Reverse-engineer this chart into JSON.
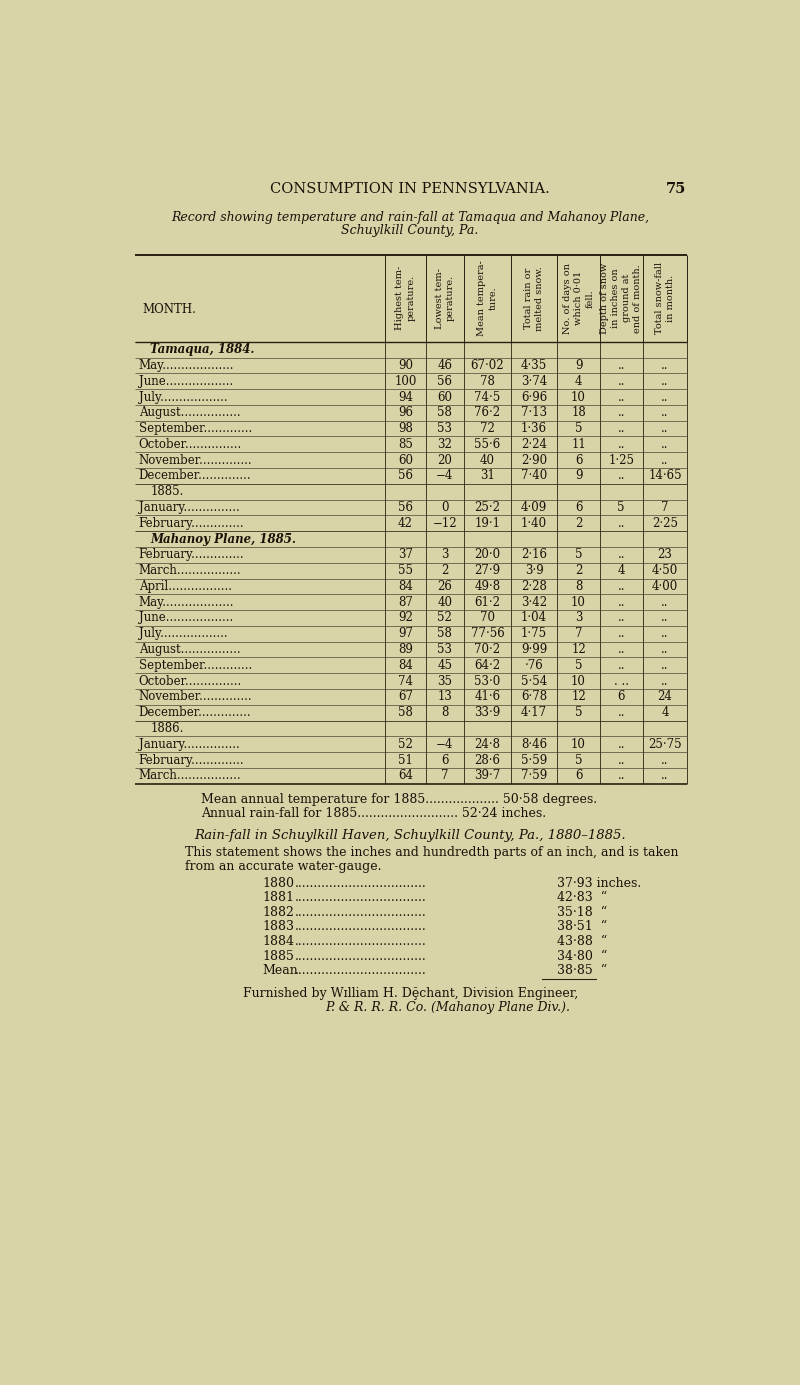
{
  "page_header": "CONSUMPTION IN PENNSYLVANIA.",
  "page_number": "75",
  "record_title_line1": "Record showing temperature and rain-fall at Tamaqua and Mahanoy Plane,",
  "record_title_line2": "Schuylkill County, Pa.",
  "bg_color": "#d8d4a8",
  "text_color": "#1a1208",
  "line_color": "#2a2010",
  "sections": [
    {
      "label": "Tamaqua, 1884.",
      "label_style": "italic_bold",
      "rows": [
        {
          "month": "May",
          "high": "90",
          "low": "46",
          "mean": "67·02",
          "rain": "4·35",
          "days": "9",
          "depth": "..",
          "snow": ".."
        },
        {
          "month": "June",
          "high": "100",
          "low": "56",
          "mean": "78",
          "rain": "3·74",
          "days": "4",
          "depth": "..",
          "snow": ".."
        },
        {
          "month": "July",
          "high": "94",
          "low": "60",
          "mean": "74·5",
          "rain": "6·96",
          "days": "10",
          "depth": "..",
          "snow": ".."
        },
        {
          "month": "August",
          "high": "96",
          "low": "58",
          "mean": "76·2",
          "rain": "7·13",
          "days": "18",
          "depth": "..",
          "snow": ".."
        },
        {
          "month": "September",
          "high": "98",
          "low": "53",
          "mean": "72",
          "rain": "1·36",
          "days": "5",
          "depth": "..",
          "snow": ".."
        },
        {
          "month": "October",
          "high": "85",
          "low": "32",
          "mean": "55·6",
          "rain": "2·24",
          "days": "11",
          "depth": "..",
          "snow": ".."
        },
        {
          "month": "November",
          "high": "60",
          "low": "20",
          "mean": "40",
          "rain": "2·90",
          "days": "6",
          "depth": "1·25",
          "snow": ".."
        },
        {
          "month": "December",
          "high": "56",
          "low": "−4",
          "mean": "31",
          "rain": "7·40",
          "days": "9",
          "depth": "..",
          "snow": "14·65"
        }
      ]
    },
    {
      "label": "1885.",
      "label_style": "normal",
      "rows": [
        {
          "month": "January",
          "high": "56",
          "low": "0",
          "mean": "25·2",
          "rain": "4·09",
          "days": "6",
          "depth": "5",
          "snow": "7"
        },
        {
          "month": "February",
          "high": "42",
          "low": "−12",
          "mean": "19·1",
          "rain": "1·40",
          "days": "2",
          "depth": "..",
          "snow": "2·25"
        }
      ]
    },
    {
      "label": "Mahanoy Plane, 1885.",
      "label_style": "italic_bold",
      "rows": [
        {
          "month": "February",
          "high": "37",
          "low": "3",
          "mean": "20·0",
          "rain": "2·16",
          "days": "5",
          "depth": "..",
          "snow": "23"
        },
        {
          "month": "March",
          "high": "55",
          "low": "2",
          "mean": "27·9",
          "rain": "3·9",
          "days": "2",
          "depth": "4",
          "snow": "4·50"
        },
        {
          "month": "April",
          "high": "84",
          "low": "26",
          "mean": "49·8",
          "rain": "2·28",
          "days": "8",
          "depth": "..",
          "snow": "4·00"
        },
        {
          "month": "May",
          "high": "87",
          "low": "40",
          "mean": "61·2",
          "rain": "3·42",
          "days": "10",
          "depth": "..",
          "snow": ".."
        },
        {
          "month": "June",
          "high": "92",
          "low": "52",
          "mean": "70",
          "rain": "1·04",
          "days": "3",
          "depth": "..",
          "snow": ".."
        },
        {
          "month": "July",
          "high": "97",
          "low": "58",
          "mean": "77·56",
          "rain": "1·75",
          "days": "7",
          "depth": "..",
          "snow": ".."
        },
        {
          "month": "August",
          "high": "89",
          "low": "53",
          "mean": "70·2",
          "rain": "9·99",
          "days": "12",
          "depth": "..",
          "snow": ".."
        },
        {
          "month": "September",
          "high": "84",
          "low": "45",
          "mean": "64·2",
          "rain": "·76",
          "days": "5",
          "depth": "..",
          "snow": ".."
        },
        {
          "month": "October",
          "high": "74",
          "low": "35",
          "mean": "53·0",
          "rain": "5·54",
          "days": "10",
          "depth": ". ..",
          "snow": ".."
        },
        {
          "month": "November",
          "high": "67",
          "low": "13",
          "mean": "41·6",
          "rain": "6·78",
          "days": "12",
          "depth": "6",
          "snow": "24"
        },
        {
          "month": "December",
          "high": "58",
          "low": "8",
          "mean": "33·9",
          "rain": "4·17",
          "days": "5",
          "depth": "..",
          "snow": "4"
        }
      ]
    },
    {
      "label": "1886.",
      "label_style": "normal",
      "rows": [
        {
          "month": "January",
          "high": "52",
          "low": "−4",
          "mean": "24·8",
          "rain": "8·46",
          "days": "10",
          "depth": "..",
          "snow": "25·75"
        },
        {
          "month": "February",
          "high": "51",
          "low": "6",
          "mean": "28·6",
          "rain": "5·59",
          "days": "5",
          "depth": "..",
          "snow": ".."
        },
        {
          "month": "March",
          "high": "64",
          "low": "7",
          "mean": "39·7",
          "rain": "7·59",
          "days": "6",
          "depth": "..",
          "snow": ".."
        }
      ]
    }
  ],
  "footer_line1": "Mean annual temperature for 1885................... 50·58 degrees.",
  "footer_line2": "Annual rain-fall for 1885.......................... 52·24 inches.",
  "rainfall_title": "Rain-fall in Schuylkill Haven, Schuylkill County, Pa., 1880–1885.",
  "rainfall_stmt1": "This statement shows the inches and hundredth parts of an inch, and is taken",
  "rainfall_stmt2": "from an accurate water-gauge.",
  "rainfall_data": [
    [
      "1880",
      "37·93 inches."
    ],
    [
      "1881",
      "42·83  “"
    ],
    [
      "1882",
      "35·18  “"
    ],
    [
      "1883",
      "38·51  “"
    ],
    [
      "1884",
      "43·88  “"
    ],
    [
      "1885",
      "34·80  “"
    ],
    [
      "Mean",
      "38·85  “"
    ]
  ],
  "furnished1": "Furnished by Wɪlliam H. Dechant, Division Engineer,",
  "furnished2": "P. & R. R. R. Co. (Mahanoy Plane Div.)."
}
